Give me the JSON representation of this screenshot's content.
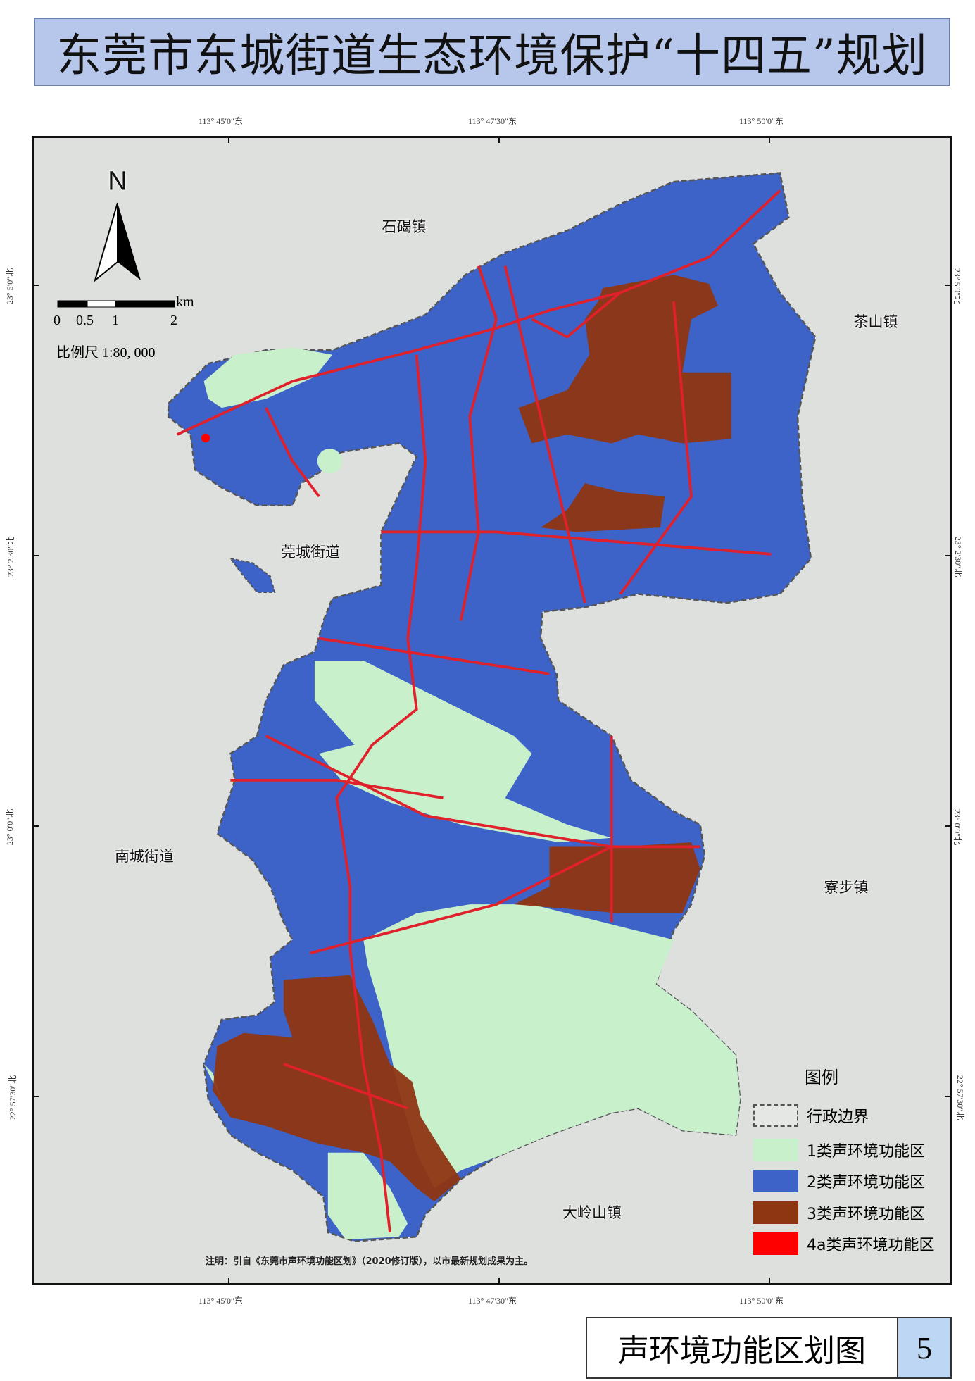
{
  "title": "东莞市东城街道生态环境保护“十四五”规划",
  "map_name": "声环境功能区划图",
  "figure_number": "5",
  "coordinates": {
    "top": [
      "113° 45′0″东",
      "113° 47′30″东",
      "113° 50′0″东"
    ],
    "bottom": [
      "113° 45′0″东",
      "113° 47′30″东",
      "113° 50′0″东"
    ],
    "left": [
      "23° 5′0″北",
      "23° 2′30″北",
      "23° 0′0″北",
      "22° 57′30″北"
    ],
    "right": [
      "23° 5′0″北",
      "23° 2′30″北",
      "23° 0′0″北",
      "22° 57′30″北"
    ]
  },
  "places": {
    "shijie": "石碣镇",
    "chashan": "茶山镇",
    "guancheng": "莞城街道",
    "nancheng": "南城街道",
    "liaobu": "寮步镇",
    "dalingshan": "大岭山镇"
  },
  "north_arrow": "N",
  "scale_bar": {
    "labels": [
      "0",
      "0.5",
      "1",
      "2"
    ],
    "unit": "km",
    "ratio": "比例尺 1:80, 000"
  },
  "legend": {
    "title": "图例",
    "items": [
      {
        "label": "行政边界",
        "color": "none"
      },
      {
        "label": "1类声环境功能区",
        "color": "#c8f0cb"
      },
      {
        "label": "2类声环境功能区",
        "color": "#3d63c8"
      },
      {
        "label": "3类声环境功能区",
        "color": "#8e3512"
      },
      {
        "label": "4a类声环境功能区",
        "color": "#ff0000"
      }
    ]
  },
  "note": "注明：引自《东莞市声环境功能区划》（2020修订版），以市最新规划成果为主。"
}
